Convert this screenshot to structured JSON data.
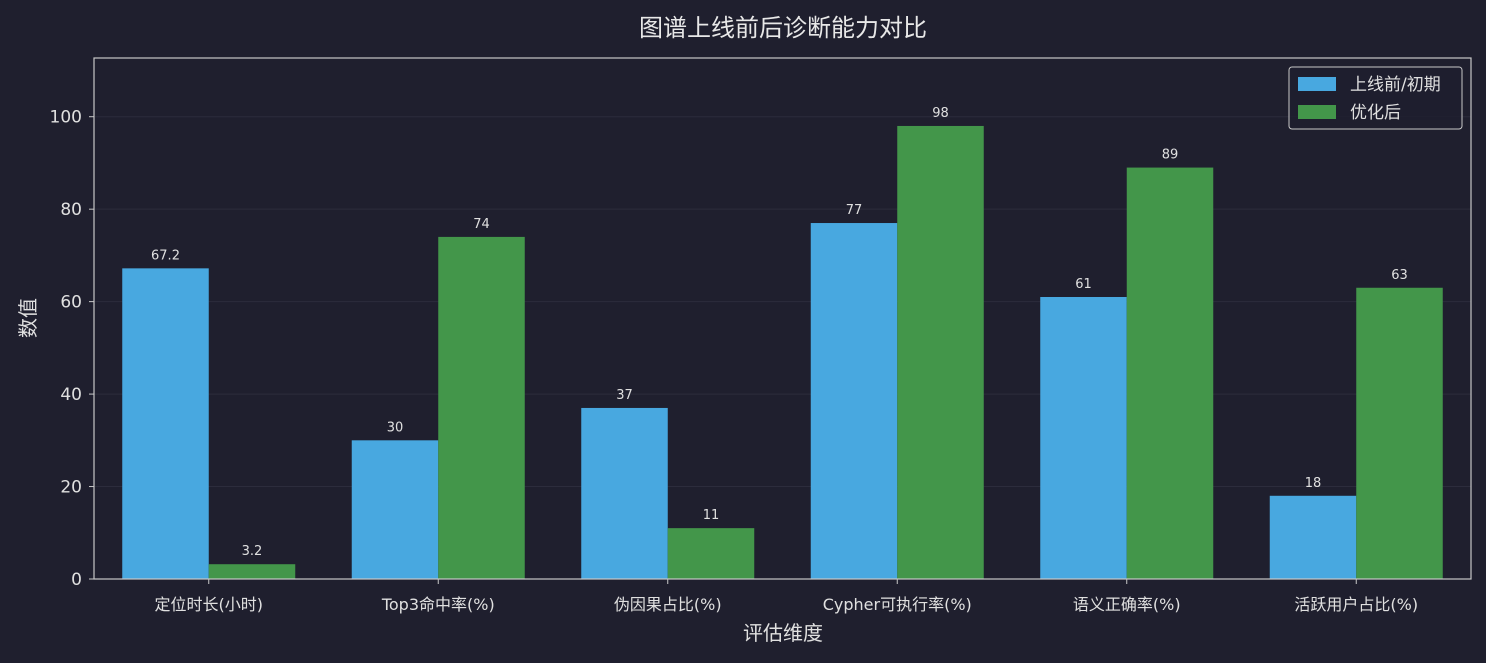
{
  "chart_data": {
    "type": "bar",
    "title": "图谱上线前后诊断能力对比",
    "xlabel": "评估维度",
    "ylabel": "数值",
    "categories": [
      "定位时长(小时)",
      "Top3命中率(%)",
      "伪因果占比(%)",
      "Cypher可执行率(%)",
      "语义正确率(%)",
      "活跃用户占比(%)"
    ],
    "series": [
      {
        "name": "上线前/初期",
        "color": "#48a8e0",
        "values": [
          67.2,
          30,
          37,
          77,
          61,
          18
        ],
        "labels": [
          "67.2",
          "30",
          "37",
          "77",
          "61",
          "18"
        ]
      },
      {
        "name": "优化后",
        "color": "#43964a",
        "values": [
          3.2,
          74,
          11,
          98,
          89,
          63
        ],
        "labels": [
          "3.2",
          "74",
          "11",
          "98",
          "89",
          "63"
        ]
      }
    ],
    "ylim": [
      0,
      112.7
    ],
    "yticks": [
      0,
      20,
      40,
      60,
      80,
      100
    ],
    "grid": true,
    "legend_position": "top-right",
    "colors": {
      "background": "#1f1f2e",
      "spine": "#c8c8c8",
      "grid": "#2c2c3c",
      "text": "#e0e0e0"
    }
  }
}
